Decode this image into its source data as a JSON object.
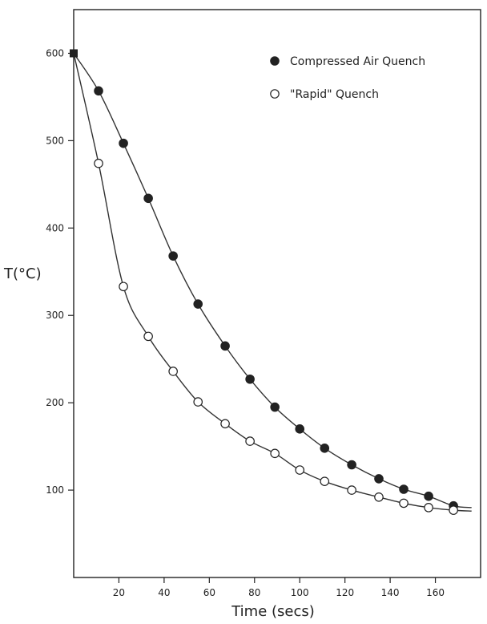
{
  "chart_data": {
    "type": "scatter",
    "title": "",
    "xlabel": "Time (secs)",
    "ylabel": "T(°C)",
    "xlim": [
      0,
      180
    ],
    "ylim": [
      0,
      650
    ],
    "x_ticks": [
      20,
      40,
      60,
      80,
      100,
      120,
      140,
      160
    ],
    "y_ticks": [
      100,
      200,
      300,
      400,
      500,
      600
    ],
    "legend_position": "top-right",
    "grid": false,
    "series": [
      {
        "name": "Compressed Air Quench",
        "marker": "filled-circle",
        "color": "#222222",
        "x": [
          0,
          11,
          22,
          33,
          44,
          55,
          67,
          78,
          89,
          100,
          111,
          123,
          135,
          146,
          157,
          168
        ],
        "y": [
          600,
          557,
          497,
          434,
          368,
          313,
          265,
          227,
          195,
          170,
          148,
          129,
          113,
          101,
          93,
          82
        ]
      },
      {
        "name": "\"Rapid\" Quench",
        "marker": "open-circle",
        "color": "#222222",
        "x": [
          11,
          22,
          33,
          44,
          55,
          67,
          78,
          89,
          100,
          111,
          123,
          135,
          146,
          157,
          168
        ],
        "y": [
          474,
          333,
          276,
          236,
          201,
          176,
          156,
          142,
          123,
          110,
          100,
          92,
          85,
          80,
          77
        ]
      }
    ]
  }
}
